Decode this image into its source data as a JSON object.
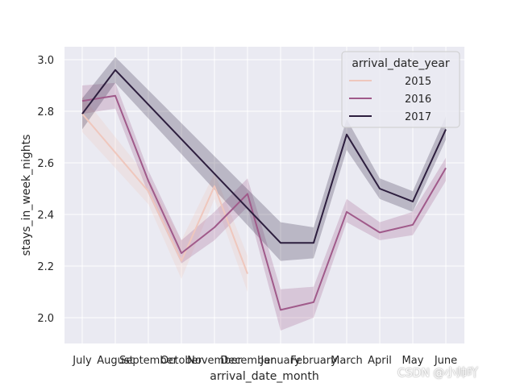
{
  "chart_data": {
    "type": "line",
    "title": "",
    "xlabel": "arrival_date_month",
    "ylabel": "stays_in_week_nights",
    "ylim": [
      1.9,
      3.05
    ],
    "yticks": [
      2.0,
      2.2,
      2.4,
      2.6,
      2.8,
      3.0
    ],
    "ytick_labels": [
      "2.0",
      "2.2",
      "2.4",
      "2.6",
      "2.8",
      "3.0"
    ],
    "categories": [
      "July",
      "August",
      "September",
      "October",
      "November",
      "December",
      "January",
      "February",
      "March",
      "April",
      "May",
      "June"
    ],
    "grid": true,
    "legend_position": "top-right",
    "legend_title": "arrival_date_year",
    "series": [
      {
        "name": "2015",
        "color": "#efc7bd",
        "values": [
          2.79,
          2.64,
          2.49,
          2.22,
          2.51,
          2.17,
          null,
          null,
          null,
          null,
          null,
          null
        ],
        "ci_low": [
          2.72,
          2.58,
          2.44,
          2.15,
          2.46,
          2.1,
          null,
          null,
          null,
          null,
          null,
          null
        ],
        "ci_high": [
          2.86,
          2.7,
          2.54,
          2.3,
          2.56,
          2.24,
          null,
          null,
          null,
          null,
          null,
          null
        ]
      },
      {
        "name": "2016",
        "color": "#a05a8a",
        "values": [
          2.84,
          2.86,
          2.53,
          2.25,
          2.35,
          2.48,
          2.03,
          2.06,
          2.41,
          2.33,
          2.36,
          2.58
        ],
        "ci_low": [
          2.79,
          2.81,
          2.48,
          2.21,
          2.3,
          2.43,
          1.95,
          2.0,
          2.37,
          2.3,
          2.32,
          2.53
        ],
        "ci_high": [
          2.9,
          2.91,
          2.57,
          2.3,
          2.41,
          2.54,
          2.11,
          2.12,
          2.46,
          2.37,
          2.41,
          2.62
        ]
      },
      {
        "name": "2017",
        "color": "#2d1e3e",
        "values": [
          2.79,
          2.96,
          null,
          null,
          null,
          null,
          2.29,
          2.29,
          2.71,
          2.5,
          2.45,
          2.73
        ],
        "ci_low": [
          2.73,
          2.91,
          null,
          null,
          null,
          null,
          2.22,
          2.23,
          2.65,
          2.46,
          2.41,
          2.69
        ],
        "ci_high": [
          2.85,
          3.01,
          null,
          null,
          null,
          null,
          2.37,
          2.35,
          2.77,
          2.54,
          2.49,
          2.78
        ]
      }
    ]
  },
  "watermark": "CSDN @小帅吖"
}
